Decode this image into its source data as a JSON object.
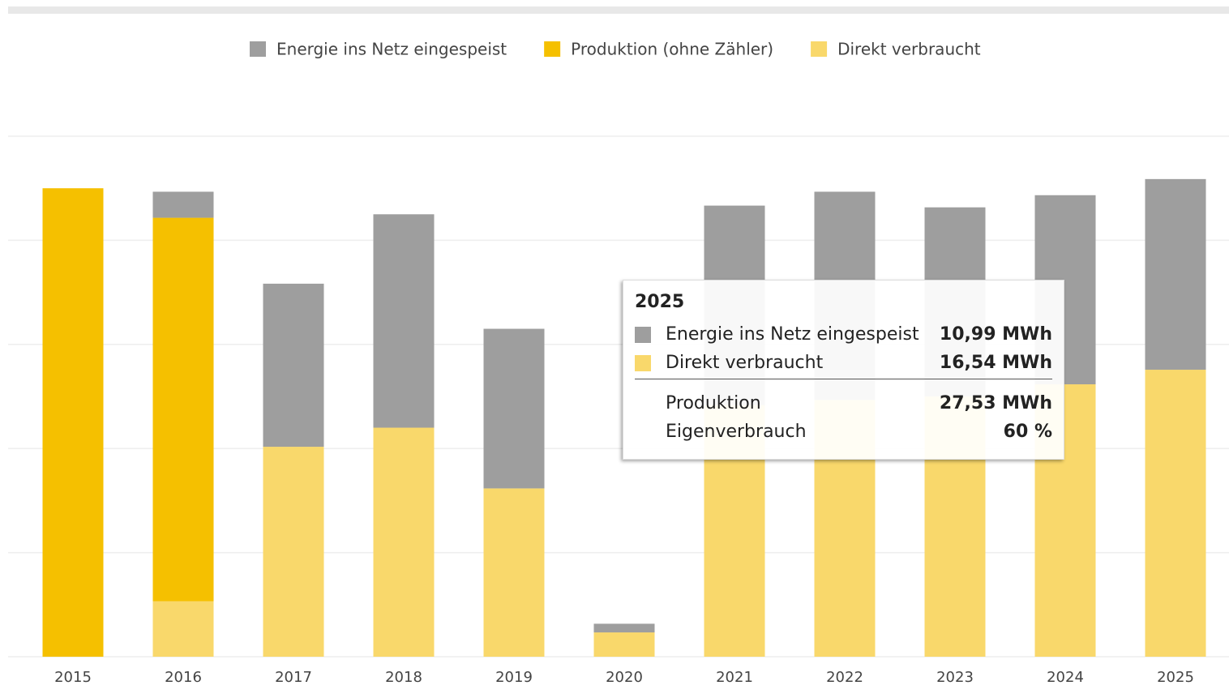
{
  "chart_data": {
    "type": "stacked_bar",
    "categories": [
      "2015",
      "2016",
      "2017",
      "2018",
      "2019",
      "2020",
      "2021",
      "2022",
      "2023",
      "2024",
      "2025"
    ],
    "series": [
      {
        "name": "Direkt verbraucht",
        "color": "#f9d86b",
        "values": [
          null,
          3.2,
          12.1,
          13.2,
          9.7,
          1.4,
          14.5,
          14.8,
          15.0,
          15.7,
          16.54
        ]
      },
      {
        "name": "Produktion (ohne Zähler)",
        "color": "#f5c000",
        "values": [
          27.0,
          22.1,
          null,
          null,
          null,
          null,
          null,
          null,
          null,
          null,
          null
        ]
      },
      {
        "name": "Energie ins Netz eingespeist",
        "color": "#9e9e9e",
        "values": [
          null,
          1.5,
          9.4,
          12.3,
          9.2,
          0.5,
          11.5,
          12.0,
          10.9,
          10.9,
          10.99
        ]
      }
    ],
    "legend_order": [
      2,
      1,
      0
    ],
    "ylim": [
      0,
      30
    ],
    "yticks": [
      0,
      6,
      12,
      18,
      24,
      30
    ],
    "grid": true,
    "tooltip": {
      "title": "2025",
      "rows": [
        {
          "label": "Energie ins Netz eingespeist",
          "value": "10,99 MWh",
          "color": "#9e9e9e"
        },
        {
          "label": "Direkt verbraucht",
          "value": "16,54 MWh",
          "color": "#f9d86b"
        },
        {
          "label": "Produktion",
          "value": "27,53 MWh"
        },
        {
          "label": "Eigenverbrauch",
          "value": "60 %"
        }
      ]
    }
  }
}
